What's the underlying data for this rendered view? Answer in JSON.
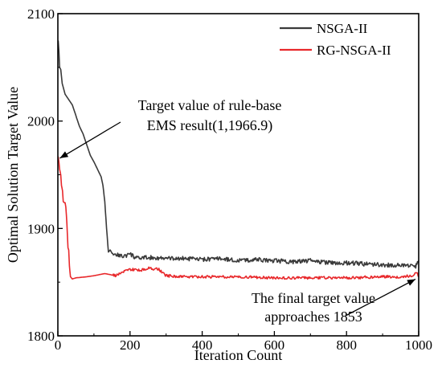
{
  "chart_data": {
    "type": "line",
    "title": "",
    "xlabel": "Iteration Count",
    "ylabel": "Optimal Solution Target Value",
    "xlim": [
      0,
      1000
    ],
    "ylim": [
      1800,
      2100
    ],
    "xticks": [
      0,
      200,
      400,
      600,
      800,
      1000
    ],
    "yticks": [
      1800,
      1900,
      2000,
      2100
    ],
    "grid": false,
    "legend": "top-right",
    "series": [
      {
        "name": "NSGA-II",
        "color": "#3a3a3a",
        "x": [
          1,
          3,
          5,
          8,
          12,
          20,
          30,
          40,
          50,
          60,
          70,
          80,
          90,
          100,
          110,
          120,
          125,
          130,
          135,
          140,
          145,
          150,
          160,
          180,
          200,
          220,
          250,
          300,
          350,
          400,
          450,
          500,
          550,
          600,
          650,
          700,
          750,
          800,
          850,
          900,
          950,
          980,
          990,
          995,
          1000
        ],
        "y": [
          2075,
          2065,
          2050,
          2048,
          2035,
          2025,
          2020,
          2015,
          2005,
          1995,
          1988,
          1978,
          1968,
          1962,
          1955,
          1948,
          1940,
          1925,
          1900,
          1878,
          1880,
          1877,
          1876,
          1874,
          1876,
          1872,
          1873,
          1872,
          1872,
          1871,
          1872,
          1870,
          1871,
          1870,
          1869,
          1870,
          1868,
          1868,
          1867,
          1866,
          1866,
          1865,
          1864,
          1866,
          1870
        ]
      },
      {
        "name": "RG-NSGA-II",
        "color": "#e8282b",
        "x": [
          1,
          3,
          5,
          8,
          10,
          13,
          15,
          18,
          20,
          22,
          25,
          28,
          30,
          32,
          35,
          40,
          50,
          80,
          100,
          130,
          160,
          180,
          200,
          230,
          250,
          280,
          300,
          350,
          400,
          500,
          600,
          700,
          800,
          900,
          950,
          980,
          990,
          995,
          1000
        ],
        "y": [
          1967,
          1962,
          1955,
          1950,
          1940,
          1935,
          1925,
          1924,
          1924,
          1920,
          1905,
          1882,
          1880,
          1865,
          1855,
          1853,
          1854,
          1855,
          1856,
          1858,
          1856,
          1860,
          1862,
          1861,
          1863,
          1862,
          1856,
          1855,
          1855,
          1855,
          1854,
          1854,
          1854,
          1855,
          1855,
          1856,
          1858,
          1859,
          1855
        ]
      }
    ],
    "annotations": [
      {
        "lines": [
          "Target value of rule-base",
          "EMS result(1,1966.9)"
        ],
        "point": [
          1,
          1966.9
        ]
      },
      {
        "lines": [
          "The final target value",
          "approaches 1853"
        ],
        "point": [
          1000,
          1855
        ]
      }
    ]
  }
}
